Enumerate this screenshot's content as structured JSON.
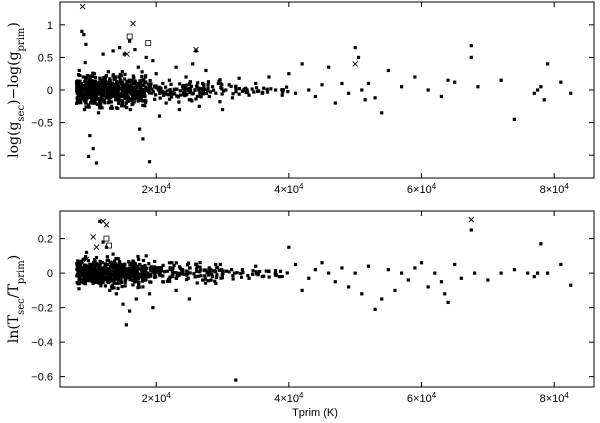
{
  "chart_data": [
    {
      "type": "scatter",
      "title": "",
      "xlabel": "",
      "ylabel_parts": {
        "pre": "log(g",
        "sub1": "sec",
        "mid": ")−log(g",
        "sub2": "prim",
        "post": ")"
      },
      "xlim": [
        5500,
        86000
      ],
      "ylim": [
        -1.35,
        1.35
      ],
      "xticks": [
        {
          "value": 20000,
          "mant": "2×10",
          "exp": "4"
        },
        {
          "value": 40000,
          "mant": "4×10",
          "exp": "4"
        },
        {
          "value": 60000,
          "mant": "6×10",
          "exp": "4"
        },
        {
          "value": 80000,
          "mant": "8×10",
          "exp": "4"
        }
      ],
      "yticks": [
        {
          "value": 1,
          "label": "1"
        },
        {
          "value": 0.5,
          "label": "0.5"
        },
        {
          "value": 0,
          "label": "0"
        },
        {
          "value": -0.5,
          "label": "−0.5"
        },
        {
          "value": -1,
          "label": "−1"
        }
      ],
      "series": [
        {
          "marker": "square",
          "points": [
            [
              8000,
              0.12
            ],
            [
              8200,
              -0.05
            ],
            [
              8400,
              0.3
            ],
            [
              8600,
              -0.15
            ],
            [
              8800,
              0.05
            ],
            [
              9000,
              0.2
            ],
            [
              9200,
              -0.3
            ],
            [
              9300,
              0.42
            ],
            [
              9500,
              0.0
            ],
            [
              9700,
              -0.1
            ],
            [
              9900,
              0.15
            ],
            [
              10100,
              -0.2
            ],
            [
              10300,
              0.08
            ],
            [
              10500,
              -0.05
            ],
            [
              10700,
              0.25
            ],
            [
              10900,
              -0.12
            ],
            [
              11100,
              0.03
            ],
            [
              11300,
              -0.35
            ],
            [
              11500,
              0.18
            ],
            [
              11700,
              -0.02
            ],
            [
              11900,
              0.1
            ],
            [
              12100,
              -0.18
            ],
            [
              12300,
              0.05
            ],
            [
              12500,
              0.22
            ],
            [
              12700,
              -0.08
            ],
            [
              12900,
              0.0
            ],
            [
              13100,
              0.14
            ],
            [
              13300,
              -0.25
            ],
            [
              13500,
              0.06
            ],
            [
              13700,
              -0.04
            ],
            [
              13900,
              0.2
            ],
            [
              14100,
              -0.15
            ],
            [
              14300,
              0.02
            ],
            [
              14500,
              0.12
            ],
            [
              14700,
              -0.06
            ],
            [
              14900,
              0.28
            ],
            [
              15100,
              -0.1
            ],
            [
              15300,
              0.04
            ],
            [
              15500,
              -0.2
            ],
            [
              15700,
              0.08
            ],
            [
              15900,
              0.0
            ],
            [
              16100,
              -0.3
            ],
            [
              16300,
              0.15
            ],
            [
              16500,
              -0.05
            ],
            [
              16700,
              0.1
            ],
            [
              16900,
              -0.12
            ],
            [
              17100,
              0.05
            ],
            [
              17300,
              0.35
            ],
            [
              17500,
              -0.08
            ],
            [
              17700,
              0.02
            ],
            [
              8800,
              0.9
            ],
            [
              9100,
              0.85
            ],
            [
              9400,
              0.7
            ],
            [
              10000,
              -0.7
            ],
            [
              10500,
              -0.9
            ],
            [
              11000,
              -1.12
            ],
            [
              9800,
              -1.02
            ],
            [
              12000,
              0.55
            ],
            [
              13500,
              0.6
            ],
            [
              14500,
              0.65
            ],
            [
              15200,
              0.55
            ],
            [
              16000,
              0.75
            ],
            [
              16800,
              0.62
            ],
            [
              17500,
              -0.6
            ],
            [
              18000,
              -0.75
            ],
            [
              18500,
              0.5
            ],
            [
              19000,
              -1.1
            ],
            [
              19500,
              0.45
            ],
            [
              20000,
              0.25
            ],
            [
              20500,
              -0.4
            ],
            [
              21000,
              0.1
            ],
            [
              21500,
              -0.2
            ],
            [
              22000,
              0.15
            ],
            [
              22500,
              -0.05
            ],
            [
              23000,
              0.35
            ],
            [
              23500,
              -0.3
            ],
            [
              24000,
              0.05
            ],
            [
              24500,
              0.2
            ],
            [
              25000,
              -0.15
            ],
            [
              25500,
              0.4
            ],
            [
              26000,
              0.6
            ],
            [
              26500,
              -0.25
            ],
            [
              27000,
              0.1
            ],
            [
              27500,
              0.3
            ],
            [
              28000,
              -0.1
            ],
            [
              28500,
              0.05
            ],
            [
              29000,
              -0.05
            ],
            [
              29500,
              0.12
            ],
            [
              30000,
              -0.3
            ],
            [
              30500,
              0.0
            ],
            [
              31000,
              0.08
            ],
            [
              31500,
              -0.12
            ],
            [
              32000,
              0.05
            ],
            [
              32500,
              0.18
            ],
            [
              33000,
              -0.02
            ],
            [
              33500,
              0.02
            ],
            [
              34000,
              -0.08
            ],
            [
              35000,
              0.1
            ],
            [
              36000,
              -0.05
            ],
            [
              37000,
              0.2
            ],
            [
              38000,
              0.0
            ],
            [
              39000,
              -0.08
            ],
            [
              40000,
              0.25
            ],
            [
              41000,
              -0.05
            ],
            [
              42000,
              0.4
            ],
            [
              43000,
              0.0
            ],
            [
              44000,
              -0.1
            ],
            [
              45000,
              0.08
            ],
            [
              46000,
              0.35
            ],
            [
              47000,
              -0.2
            ],
            [
              48000,
              0.1
            ],
            [
              49000,
              -0.05
            ],
            [
              50000,
              0.65
            ],
            [
              50500,
              0.5
            ],
            [
              51000,
              0.0
            ],
            [
              51500,
              -0.15
            ],
            [
              52000,
              0.1
            ],
            [
              53000,
              -0.12
            ],
            [
              54000,
              -0.35
            ],
            [
              55000,
              0.3
            ],
            [
              57000,
              0.05
            ],
            [
              59000,
              0.2
            ],
            [
              61000,
              0.0
            ],
            [
              63000,
              -0.1
            ],
            [
              64000,
              0.15
            ],
            [
              65000,
              0.12
            ],
            [
              67500,
              0.68
            ],
            [
              67500,
              0.5
            ],
            [
              68500,
              0.05
            ],
            [
              72000,
              0.15
            ],
            [
              74000,
              -0.45
            ],
            [
              77000,
              -0.05
            ],
            [
              77500,
              0.0
            ],
            [
              78000,
              0.05
            ],
            [
              78500,
              -0.15
            ],
            [
              79000,
              0.4
            ],
            [
              81000,
              0.12
            ],
            [
              82500,
              -0.05
            ]
          ]
        },
        {
          "marker": "cross",
          "points": [
            [
              8900,
              1.28
            ],
            [
              16500,
              1.02
            ],
            [
              26000,
              0.62
            ],
            [
              50000,
              0.4
            ],
            [
              15600,
              0.55
            ]
          ]
        },
        {
          "marker": "open-square",
          "points": [
            [
              18800,
              0.72
            ],
            [
              16000,
              0.82
            ]
          ]
        }
      ],
      "cloud": {
        "bands": [
          {
            "x": [
              8000,
              18500
            ],
            "n": 560,
            "sd": 0.15
          },
          {
            "x": [
              18500,
              30000
            ],
            "n": 130,
            "sd": 0.09
          },
          {
            "x": [
              30000,
              40000
            ],
            "n": 30,
            "sd": 0.05
          }
        ],
        "seed": 7
      }
    },
    {
      "type": "scatter",
      "title": "",
      "xlabel": "Tprim (K)",
      "ylabel_parts": {
        "pre": "ln(T",
        "sub1": "sec",
        "mid": "/T",
        "sub2": "prim",
        "post": ")"
      },
      "xlim": [
        5500,
        86000
      ],
      "ylim": [
        -0.66,
        0.36
      ],
      "xticks": [
        {
          "value": 20000,
          "mant": "2×10",
          "exp": "4"
        },
        {
          "value": 40000,
          "mant": "4×10",
          "exp": "4"
        },
        {
          "value": 60000,
          "mant": "6×10",
          "exp": "4"
        },
        {
          "value": 80000,
          "mant": "8×10",
          "exp": "4"
        }
      ],
      "yticks": [
        {
          "value": 0.2,
          "label": "0.2"
        },
        {
          "value": 0,
          "label": "0"
        },
        {
          "value": -0.2,
          "label": "−0.2"
        },
        {
          "value": -0.4,
          "label": "−0.4"
        },
        {
          "value": -0.6,
          "label": "−0.6"
        }
      ],
      "series": [
        {
          "marker": "square",
          "points": [
            [
              9000,
              0.08
            ],
            [
              9500,
              0.12
            ],
            [
              10000,
              0.05
            ],
            [
              10500,
              -0.06
            ],
            [
              11000,
              0.09
            ],
            [
              11500,
              0.3
            ],
            [
              12000,
              0.18
            ],
            [
              12500,
              0.15
            ],
            [
              13000,
              -0.1
            ],
            [
              13500,
              0.11
            ],
            [
              14000,
              -0.12
            ],
            [
              14500,
              0.06
            ],
            [
              15000,
              -0.18
            ],
            [
              15500,
              -0.3
            ],
            [
              16000,
              -0.22
            ],
            [
              16500,
              0.07
            ],
            [
              17000,
              -0.15
            ],
            [
              17500,
              0.05
            ],
            [
              18000,
              -0.08
            ],
            [
              18500,
              0.1
            ],
            [
              19000,
              -0.12
            ],
            [
              19500,
              -0.2
            ],
            [
              20000,
              0.03
            ],
            [
              21000,
              -0.05
            ],
            [
              22000,
              0.06
            ],
            [
              23000,
              -0.1
            ],
            [
              24000,
              0.02
            ],
            [
              25000,
              -0.15
            ],
            [
              26000,
              0.05
            ],
            [
              27000,
              -0.04
            ],
            [
              28000,
              0.03
            ],
            [
              29000,
              -0.06
            ],
            [
              30000,
              0.01
            ],
            [
              32000,
              -0.62
            ],
            [
              33000,
              0.02
            ],
            [
              34000,
              -0.03
            ],
            [
              35000,
              0.04
            ],
            [
              36000,
              -0.02
            ],
            [
              37000,
              0.01
            ],
            [
              38000,
              0.0
            ],
            [
              39000,
              -0.02
            ],
            [
              40000,
              0.15
            ],
            [
              41000,
              0.05
            ],
            [
              42000,
              -0.1
            ],
            [
              43000,
              -0.03
            ],
            [
              44000,
              0.02
            ],
            [
              45000,
              0.06
            ],
            [
              46000,
              0.0
            ],
            [
              47000,
              -0.05
            ],
            [
              48000,
              0.03
            ],
            [
              49000,
              -0.08
            ],
            [
              50000,
              0.0
            ],
            [
              51000,
              -0.12
            ],
            [
              52000,
              0.04
            ],
            [
              53000,
              -0.21
            ],
            [
              54000,
              -0.15
            ],
            [
              55000,
              0.02
            ],
            [
              56000,
              -0.1
            ],
            [
              57000,
              0.0
            ],
            [
              58000,
              -0.04
            ],
            [
              59000,
              0.03
            ],
            [
              60000,
              0.06
            ],
            [
              61000,
              -0.08
            ],
            [
              62000,
              0.0
            ],
            [
              63000,
              -0.05
            ],
            [
              63500,
              -0.12
            ],
            [
              64000,
              -0.17
            ],
            [
              65000,
              0.05
            ],
            [
              66000,
              -0.03
            ],
            [
              67500,
              0.25
            ],
            [
              68000,
              0.0
            ],
            [
              70000,
              -0.04
            ],
            [
              72000,
              0.0
            ],
            [
              74000,
              0.02
            ],
            [
              76000,
              0.0
            ],
            [
              77000,
              -0.02
            ],
            [
              77500,
              0.0
            ],
            [
              78000,
              0.17
            ],
            [
              79000,
              0.0
            ],
            [
              81000,
              0.05
            ],
            [
              82500,
              -0.07
            ]
          ]
        },
        {
          "marker": "cross",
          "points": [
            [
              9500,
              0.08
            ],
            [
              10500,
              0.21
            ],
            [
              11000,
              0.15
            ],
            [
              12000,
              0.3
            ],
            [
              12500,
              0.28
            ],
            [
              67500,
              0.31
            ]
          ]
        },
        {
          "marker": "open-square",
          "points": [
            [
              12500,
              0.2
            ],
            [
              12900,
              0.16
            ]
          ]
        }
      ],
      "cloud": {
        "bands": [
          {
            "x": [
              8000,
              18500
            ],
            "n": 520,
            "sd": 0.05
          },
          {
            "x": [
              18500,
              30000
            ],
            "n": 130,
            "sd": 0.035
          },
          {
            "x": [
              30000,
              40000
            ],
            "n": 30,
            "sd": 0.02
          }
        ],
        "seed": 19
      }
    }
  ]
}
